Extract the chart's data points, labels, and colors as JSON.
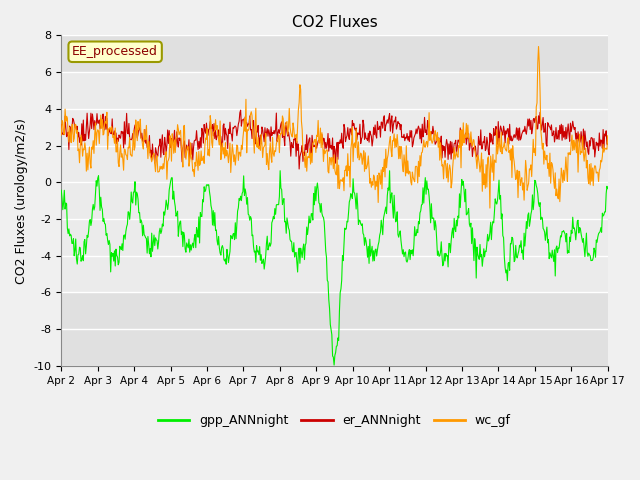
{
  "title": "CO2 Fluxes",
  "ylabel": "CO2 Fluxes (urology/m2/s)",
  "ylim": [
    -10,
    8
  ],
  "yticks": [
    -10,
    -8,
    -6,
    -4,
    -2,
    0,
    2,
    4,
    6,
    8
  ],
  "xlim": [
    0,
    15
  ],
  "figsize": [
    6.4,
    4.8
  ],
  "dpi": 100,
  "bg_color": "#f0f0f0",
  "plot_bg_color": "#ffffff",
  "band_ymin": -6,
  "band_ymax": 6,
  "band_color": "#e0e0e0",
  "outer_band_color": "#e0e0e0",
  "legend_label": "EE_processed",
  "legend_bg": "#ffffcc",
  "legend_border": "#999900",
  "legend_text_color": "#8B0000",
  "series_labels": [
    "gpp_ANNnight",
    "er_ANNnight",
    "wc_gf"
  ],
  "series_colors": [
    "#00ee00",
    "#cc0000",
    "#ff9900"
  ],
  "xticklabels": [
    "Apr 2",
    "Apr 3",
    "Apr 4",
    "Apr 5",
    "Apr 6",
    "Apr 7",
    "Apr 8",
    "Apr 9",
    "Apr 10",
    "Apr 11",
    "Apr 12",
    "Apr 13",
    "Apr 14",
    "Apr 15",
    "Apr 16",
    "Apr 17"
  ],
  "xtick_positions": [
    0,
    1,
    2,
    3,
    4,
    5,
    6,
    7,
    8,
    9,
    10,
    11,
    12,
    13,
    14,
    15
  ],
  "n_days": 15,
  "n_per_day": 48
}
